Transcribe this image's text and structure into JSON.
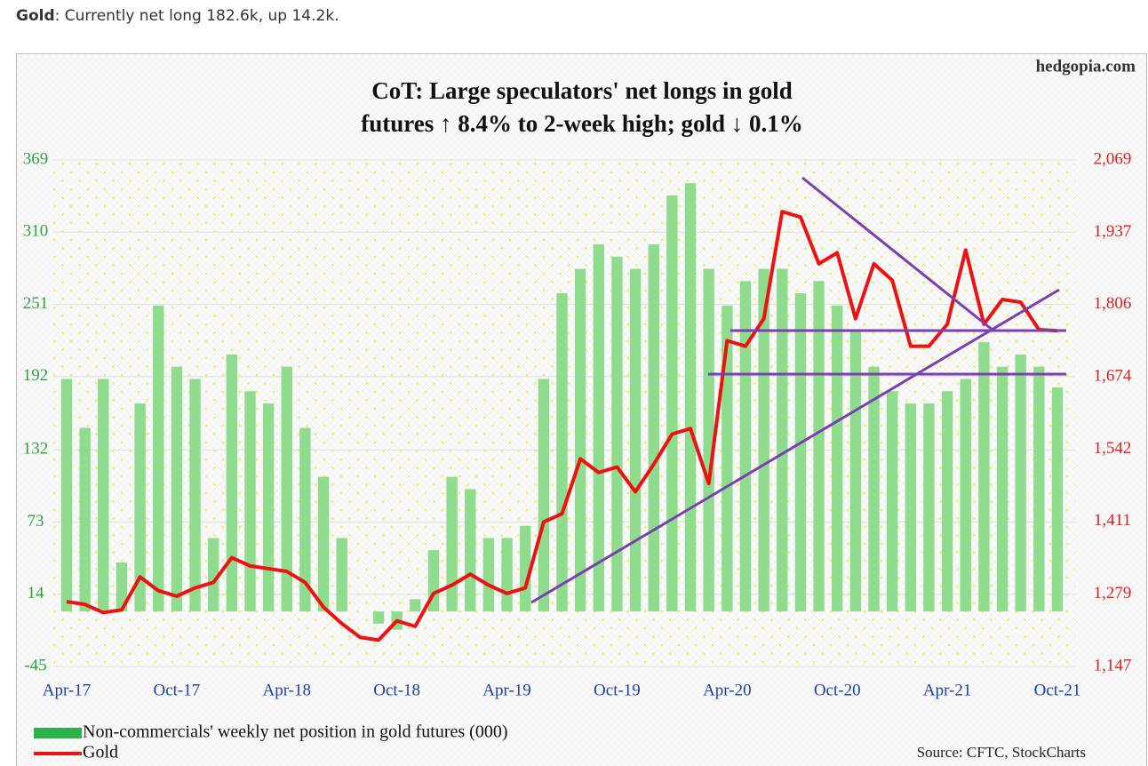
{
  "header": {
    "label": "Gold",
    "text": ": Currently net long 182.6k, up 14.2k."
  },
  "chart_data": {
    "type": "bar-line",
    "title": [
      "CoT: Large speculators' net longs in gold",
      "futures ↑ 8.4% to 2-week high; gold ↓ 0.1%"
    ],
    "watermark": "hedgopia.com",
    "source": "Source: CFTC, StockCharts",
    "categories": [
      "Apr-17",
      null,
      null,
      null,
      null,
      null,
      "Oct-17",
      null,
      null,
      null,
      null,
      null,
      "Apr-18",
      null,
      null,
      null,
      null,
      null,
      "Oct-18",
      null,
      null,
      null,
      null,
      null,
      "Apr-19",
      null,
      null,
      null,
      null,
      null,
      "Oct-19",
      null,
      null,
      null,
      null,
      null,
      "Apr-20",
      null,
      null,
      null,
      null,
      null,
      "Oct-20",
      null,
      null,
      null,
      null,
      null,
      "Apr-21",
      null,
      null,
      null,
      null,
      null,
      "Oct-21"
    ],
    "series": [
      {
        "name": "Non-commercials' weekly net position in gold futures (000)",
        "color": "#8fdc8f",
        "legend_color": "#2db34a",
        "axis": "y",
        "values": [
          190,
          150,
          190,
          40,
          170,
          250,
          200,
          190,
          60,
          210,
          180,
          170,
          200,
          150,
          110,
          60,
          0,
          -10,
          -15,
          10,
          50,
          110,
          100,
          60,
          60,
          70,
          190,
          260,
          280,
          300,
          290,
          280,
          300,
          340,
          350,
          280,
          250,
          270,
          280,
          280,
          260,
          270,
          250,
          230,
          200,
          180,
          170,
          170,
          180,
          190,
          220,
          200,
          210,
          200,
          183
        ]
      },
      {
        "name": "Gold",
        "color": "#ee1111",
        "axis": "y2",
        "values": [
          1265,
          1260,
          1245,
          1250,
          1310,
          1285,
          1275,
          1290,
          1300,
          1345,
          1330,
          1325,
          1320,
          1300,
          1255,
          1225,
          1200,
          1195,
          1230,
          1220,
          1280,
          1295,
          1315,
          1295,
          1280,
          1290,
          1410,
          1425,
          1525,
          1500,
          1510,
          1465,
          1515,
          1570,
          1580,
          1480,
          1740,
          1730,
          1780,
          1975,
          1965,
          1880,
          1900,
          1780,
          1880,
          1850,
          1730,
          1730,
          1770,
          1905,
          1770,
          1815,
          1810,
          1760,
          1758
        ]
      }
    ],
    "ylim": [
      -45,
      369
    ],
    "yticks": [
      -45,
      14,
      73,
      132,
      192,
      251,
      310,
      369
    ],
    "y2lim": [
      1147,
      2069
    ],
    "y2ticks": [
      {
        "value": 1147,
        "label": "1,147"
      },
      {
        "value": 1279,
        "label": "1,279"
      },
      {
        "value": 1411,
        "label": "1,411"
      },
      {
        "value": 1542,
        "label": "1,542"
      },
      {
        "value": 1674,
        "label": "1,674"
      },
      {
        "value": 1806,
        "label": "1,806"
      },
      {
        "value": 1937,
        "label": "1,937"
      },
      {
        "value": 2069,
        "label": "2,069"
      }
    ],
    "grid": true
  }
}
